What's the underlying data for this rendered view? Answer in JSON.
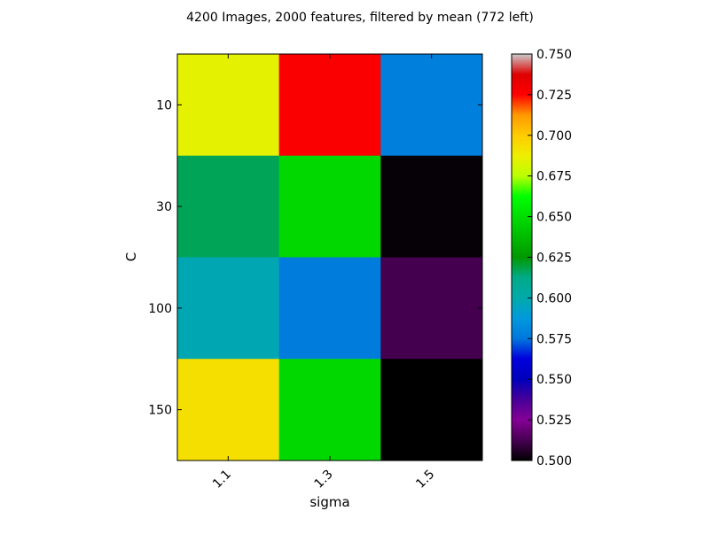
{
  "chart_data": {
    "type": "heatmap",
    "title": "4200 Images, 2000 features, filtered by mean (772 left)",
    "xlabel": "sigma",
    "ylabel": "C",
    "x_categories": [
      "1.1",
      "1.3",
      "1.5"
    ],
    "y_categories": [
      "10",
      "30",
      "100",
      "150"
    ],
    "values": [
      [
        0.685,
        0.727,
        0.578
      ],
      [
        0.617,
        0.648,
        0.501
      ],
      [
        0.598,
        0.577,
        0.512
      ],
      [
        0.693,
        0.648,
        0.5
      ]
    ],
    "colorbar": {
      "colormap": "nipy_spectral",
      "range": [
        0.5,
        0.75
      ],
      "ticks": [
        "0.500",
        "0.525",
        "0.550",
        "0.575",
        "0.600",
        "0.625",
        "0.650",
        "0.675",
        "0.700",
        "0.725",
        "0.750"
      ],
      "stops": [
        [
          0.0,
          "#000000"
        ],
        [
          0.05,
          "#470052"
        ],
        [
          0.1,
          "#840095"
        ],
        [
          0.15,
          "#470099"
        ],
        [
          0.2,
          "#0000bb"
        ],
        [
          0.25,
          "#0000dd"
        ],
        [
          0.3,
          "#0077dd"
        ],
        [
          0.35,
          "#0099dd"
        ],
        [
          0.4,
          "#00aaaa"
        ],
        [
          0.45,
          "#00aa88"
        ],
        [
          0.5,
          "#009900"
        ],
        [
          0.55,
          "#00bb00"
        ],
        [
          0.6,
          "#00dd00"
        ],
        [
          0.65,
          "#00ff00"
        ],
        [
          0.7,
          "#bbff00"
        ],
        [
          0.75,
          "#eeee00"
        ],
        [
          0.8,
          "#ffcc00"
        ],
        [
          0.85,
          "#ff9900"
        ],
        [
          0.9,
          "#ff0000"
        ],
        [
          0.95,
          "#dd0000"
        ],
        [
          1.0,
          "#cccccc"
        ]
      ]
    },
    "grid": false
  }
}
